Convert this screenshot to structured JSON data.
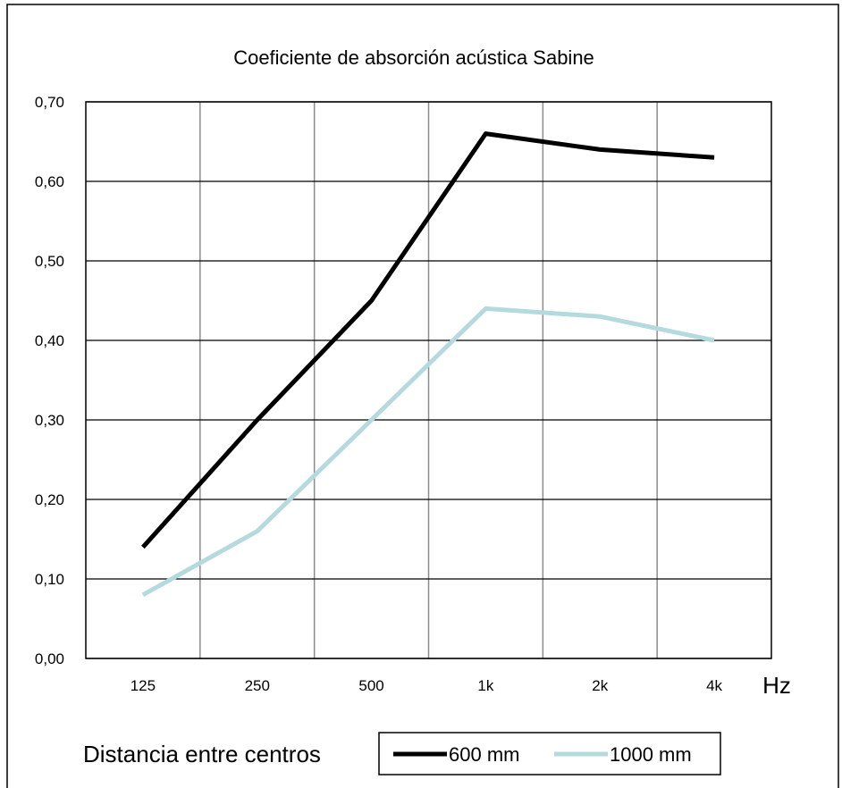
{
  "chart_data": {
    "type": "line",
    "title": "Coeficiente de absorción acústica Sabine",
    "categories": [
      "125",
      "250",
      "500",
      "1k",
      "2k",
      "4k"
    ],
    "xunit": "Hz",
    "ylim": [
      0,
      0.7
    ],
    "yticks": [
      "0,00",
      "0,10",
      "0,20",
      "0,30",
      "0,40",
      "0,50",
      "0,60",
      "0,70"
    ],
    "grid": true,
    "series": [
      {
        "name": "600 mm",
        "color": "#000000",
        "values": [
          0.14,
          0.3,
          0.45,
          0.66,
          0.64,
          0.63
        ]
      },
      {
        "name": "1000 mm",
        "color": "#b4dadd",
        "values": [
          0.08,
          0.16,
          0.3,
          0.44,
          0.43,
          0.4
        ]
      }
    ],
    "legend": {
      "title": "Distancia entre centros",
      "placement": "bottom"
    }
  }
}
